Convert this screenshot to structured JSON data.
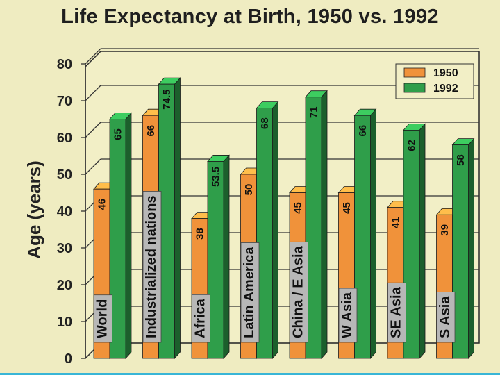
{
  "chart_data": {
    "type": "bar",
    "title": "Life Expectancy at Birth, 1950 vs. 1992",
    "xlabel": "",
    "ylabel": "Age (years)",
    "ylim": [
      0,
      80
    ],
    "yticks": [
      0,
      10,
      20,
      30,
      40,
      50,
      60,
      70,
      80
    ],
    "categories": [
      "World",
      "Industrialized nations",
      "Africa",
      "Latin America",
      "China / E Asia",
      "W Asia",
      "SE Asia",
      "S Asia"
    ],
    "series": [
      {
        "name": "1950",
        "color": "#f0923a",
        "values": [
          46,
          66,
          38,
          50,
          45,
          45,
          41,
          39
        ],
        "labels": [
          "46",
          "66",
          "38",
          "50",
          "45",
          "45",
          "41",
          "39"
        ]
      },
      {
        "name": "1992",
        "color": "#2f9e4a",
        "values": [
          65,
          74.5,
          53.5,
          68,
          71,
          66,
          62,
          58
        ],
        "labels": [
          "65",
          "74.5",
          "53.5",
          "68",
          "71",
          "66",
          "62",
          "58"
        ]
      }
    ],
    "legend_position": "top-right",
    "grid": true
  }
}
